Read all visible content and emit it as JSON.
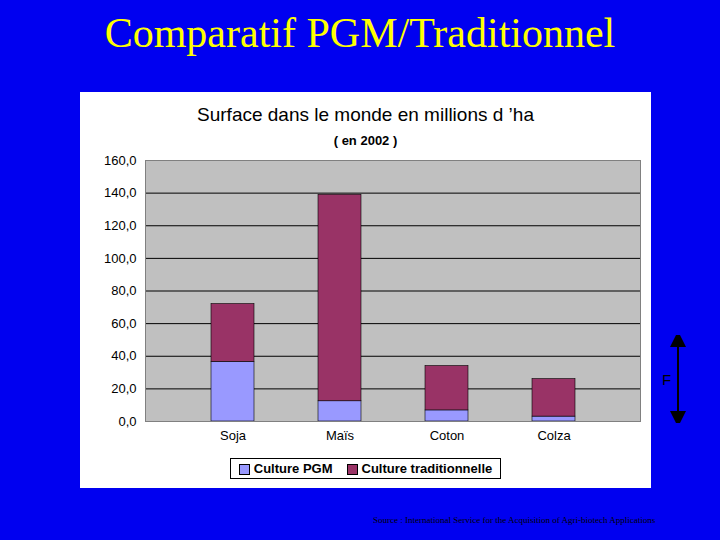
{
  "slide_title": "Comparatif PGM/Traditionnel",
  "source": "Source :   International Service for the Acquisition of Agri-biotech Applications",
  "chart_data": {
    "type": "bar",
    "stacked": true,
    "title": "Surface dans le monde en millions d ’ha",
    "subtitle": "( en 2002 )",
    "categories": [
      "Soja",
      "Maïs",
      "Coton",
      "Colza"
    ],
    "series": [
      {
        "name": "Culture PGM",
        "color": "#9999ff",
        "values": [
          36.5,
          12.4,
          6.8,
          3.0
        ]
      },
      {
        "name": "Culture traditionnelle",
        "color": "#993366",
        "values": [
          35.5,
          126.6,
          27.2,
          23.0
        ]
      }
    ],
    "ylim": [
      0,
      160
    ],
    "yticks": [
      {
        "value": 0,
        "label": "0,0"
      },
      {
        "value": 20,
        "label": "20,0"
      },
      {
        "value": 40,
        "label": "40,0"
      },
      {
        "value": 60,
        "label": "60,0"
      },
      {
        "value": 80,
        "label": "80,0"
      },
      {
        "value": 100,
        "label": "100,0"
      },
      {
        "value": 120,
        "label": "120,0"
      },
      {
        "value": 140,
        "label": "140,0"
      },
      {
        "value": 160,
        "label": "160,0"
      }
    ],
    "grid": true,
    "legend": "bottom",
    "annotations": [
      "F"
    ]
  }
}
